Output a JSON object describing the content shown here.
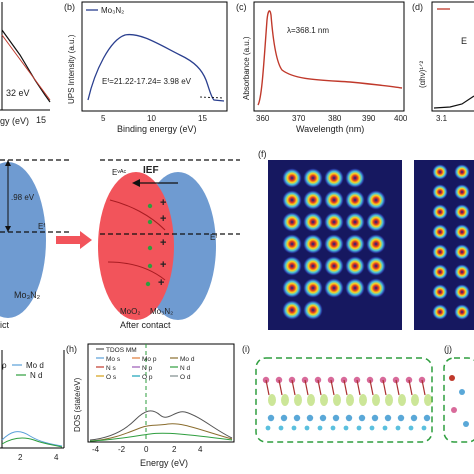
{
  "panels": {
    "a": {
      "value_text": "32 eV",
      "xlabel_partial": "gy (eV)",
      "tick_15": "15"
    },
    "b": {
      "label": "(b)",
      "legend": "Mo₃N₂",
      "ylabel": "UPS Intensity (a.u.)",
      "xlabel": "Binding energy (eV)",
      "xticks": [
        "5",
        "10",
        "15"
      ],
      "equation": "Eᶠ=21.22-17.24= 3.98 eV"
    },
    "c": {
      "label": "(c)",
      "ylabel": "Absorbance (a.u.)",
      "xlabel": "Wavelength (nm)",
      "xticks": [
        "360",
        "370",
        "380",
        "390",
        "400"
      ],
      "annotation": "λ=368.1 nm"
    },
    "d": {
      "label": "(d)",
      "ylabel": "(αhν)¹ᐟ²",
      "tick": "3.1",
      "letter": "E"
    },
    "e": {
      "before_partial": "ict",
      "material_left": "Mo₃N₂",
      "energy": ".98 eV",
      "ef": "Eᶠ",
      "evac": "Eᵛᴬᶜ",
      "ief": "IEF",
      "ef_right": "Eᶠ",
      "moo2": "MoO₂",
      "mo3n2": "Mo₃N₂",
      "after": "After contact"
    },
    "f": {
      "label": "(f)"
    },
    "g": {
      "legend": [
        "ρ",
        "Mo d",
        "N d"
      ],
      "xticks": [
        "2",
        "4"
      ]
    },
    "h": {
      "label": "(h)",
      "ylabel": "DOS (state/eV)",
      "xlabel": "Energy (eV)",
      "xticks": [
        "-4",
        "-2",
        "0",
        "2",
        "4"
      ],
      "legend": [
        "TDOS MM",
        "Mo s",
        "Mo p",
        "Mo d",
        "N s",
        "N p",
        "N d",
        "O s",
        "O p",
        "O d"
      ]
    },
    "i": {
      "label": "(i)"
    },
    "j": {
      "label": "(j)"
    }
  },
  "colors": {
    "blue": "#6f9bd1",
    "red": "#f2545b",
    "curve": "#2a3f8f",
    "absorb": "#c0392b"
  }
}
